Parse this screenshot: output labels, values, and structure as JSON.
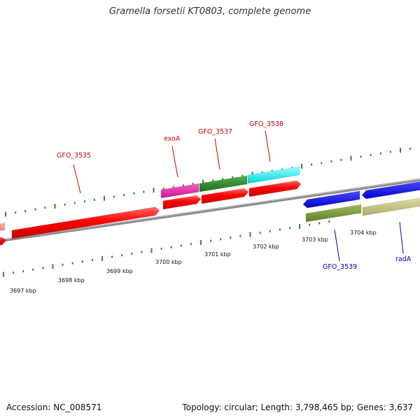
{
  "title": "Gramella forsetii KT0803, complete genome",
  "footer": {
    "accession": "Accession: NC_008571",
    "stats": "Topology: circular; Length: 3,798,465 bp; Genes: 3,637"
  },
  "colors": {
    "backbone": "#8a8a8a",
    "ticks": "#2e8b2e",
    "label_fwd": "#cc0000",
    "label_rev": "#0000aa"
  },
  "scale_labels": [
    {
      "text": "3697 kbp",
      "kbp": 3697
    },
    {
      "text": "3698 kbp",
      "kbp": 3698
    },
    {
      "text": "3699 kbp",
      "kbp": 3699
    },
    {
      "text": "3700 kbp",
      "kbp": 3700
    },
    {
      "text": "3701 kbp",
      "kbp": 3701
    },
    {
      "text": "3702 kbp",
      "kbp": 3702
    },
    {
      "text": "3703 kbp",
      "kbp": 3703
    },
    {
      "text": "3704 kbp",
      "kbp": 3704
    }
  ],
  "gene_labels": [
    {
      "text": "GFO_3535",
      "strand": "+"
    },
    {
      "text": "exoA",
      "strand": "+"
    },
    {
      "text": "GFO_3537",
      "strand": "+"
    },
    {
      "text": "GFO_3538",
      "strand": "+"
    },
    {
      "text": "GFO_3539",
      "strand": "-"
    },
    {
      "text": "radA",
      "strand": "-"
    }
  ]
}
